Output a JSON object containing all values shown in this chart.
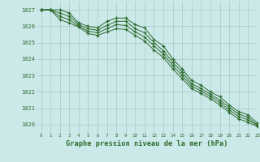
{
  "bg_color": "#cbe9e9",
  "grid_color": "#a8c8c8",
  "line_color": "#2d6a2d",
  "xlabel": "Graphe pression niveau de la mer (hPa)",
  "ylim": [
    1019.5,
    1027.5
  ],
  "xlim": [
    -0.5,
    23
  ],
  "yticks": [
    1020,
    1021,
    1022,
    1023,
    1024,
    1025,
    1026,
    1027
  ],
  "xticks": [
    0,
    1,
    2,
    3,
    4,
    5,
    6,
    7,
    8,
    9,
    10,
    11,
    12,
    13,
    14,
    15,
    16,
    17,
    18,
    19,
    20,
    21,
    22,
    23
  ],
  "series": [
    [
      1027.0,
      1027.0,
      1027.0,
      1026.8,
      1026.2,
      1026.0,
      1025.9,
      1026.3,
      1026.5,
      1026.5,
      1026.1,
      1025.9,
      1025.2,
      1024.8,
      1024.0,
      1023.4,
      1022.7,
      1022.4,
      1022.0,
      1021.7,
      1021.2,
      1020.8,
      1020.6,
      1020.1
    ],
    [
      1027.0,
      1027.0,
      1026.8,
      1026.6,
      1026.1,
      1025.85,
      1025.75,
      1026.05,
      1026.3,
      1026.3,
      1025.85,
      1025.6,
      1025.0,
      1024.5,
      1023.8,
      1023.2,
      1022.5,
      1022.2,
      1021.85,
      1021.5,
      1021.05,
      1020.65,
      1020.45,
      1019.98
    ],
    [
      1027.0,
      1027.0,
      1026.6,
      1026.4,
      1026.0,
      1025.7,
      1025.6,
      1025.85,
      1026.1,
      1026.05,
      1025.65,
      1025.35,
      1024.8,
      1024.3,
      1023.6,
      1023.0,
      1022.35,
      1022.05,
      1021.72,
      1021.35,
      1020.9,
      1020.5,
      1020.3,
      1019.95
    ],
    [
      1027.0,
      1027.0,
      1026.4,
      1026.2,
      1025.95,
      1025.55,
      1025.45,
      1025.65,
      1025.85,
      1025.8,
      1025.45,
      1025.1,
      1024.55,
      1024.1,
      1023.4,
      1022.8,
      1022.2,
      1021.9,
      1021.58,
      1021.2,
      1020.75,
      1020.35,
      1020.15,
      1019.88
    ]
  ]
}
